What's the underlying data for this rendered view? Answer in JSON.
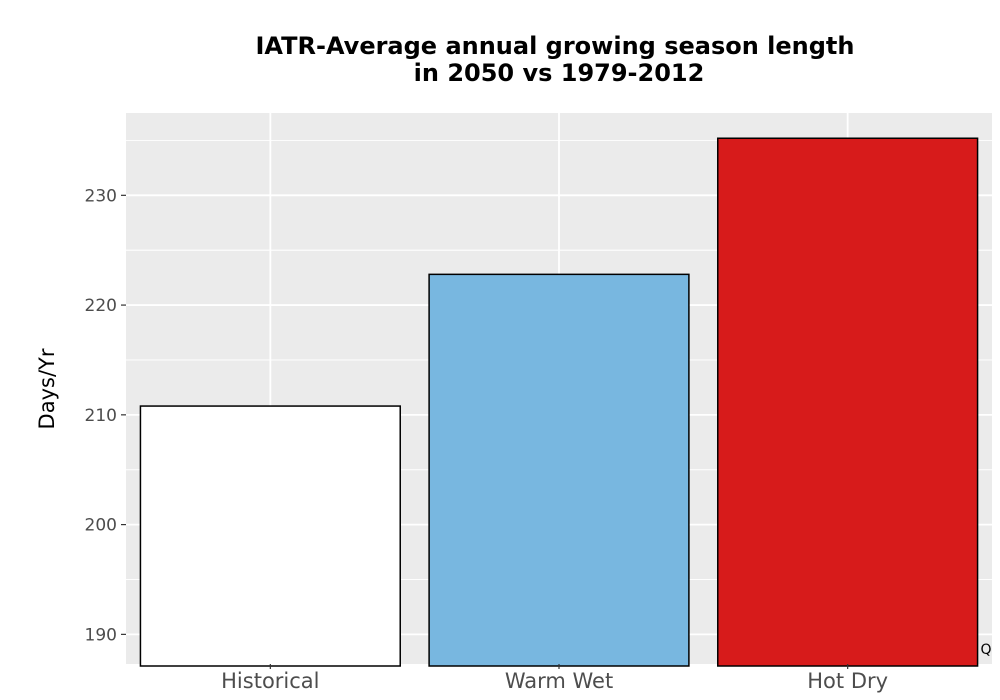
{
  "chart_data": {
    "type": "bar",
    "title_lines": [
      "IATR-Average annual growing season length",
      "in 2050 vs 1979-2012"
    ],
    "xlabel": "",
    "ylabel": "Days/Yr",
    "categories": [
      "Historical",
      "Warm Wet",
      "Hot Dry"
    ],
    "values": [
      210.8,
      222.8,
      235.2
    ],
    "colors": [
      "#ffffff",
      "#78b7e0",
      "#d71b1b"
    ],
    "ylim": [
      187.3,
      237.5
    ],
    "yticks": [
      190,
      200,
      210,
      220,
      230
    ],
    "grid": true,
    "panel_background": "#ebebeb",
    "grid_color": "#ffffff",
    "bar_outline": "#000000",
    "legend": "none",
    "corner_text": "Q"
  }
}
